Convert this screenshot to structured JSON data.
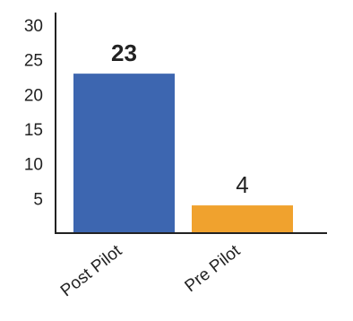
{
  "chart_data": {
    "type": "bar",
    "categories": [
      "Post Pilot",
      "Pre Pilot"
    ],
    "values": [
      23,
      4
    ],
    "data_labels": [
      "23",
      "4"
    ],
    "data_label_bold": [
      true,
      false
    ],
    "colors": [
      "#3D66B0",
      "#F0A22E"
    ],
    "yticks": [
      5,
      10,
      15,
      20,
      25,
      30
    ],
    "ylim": [
      0,
      30
    ],
    "title": "",
    "xlabel": "",
    "ylabel": "",
    "grid": false,
    "legend": "none"
  }
}
